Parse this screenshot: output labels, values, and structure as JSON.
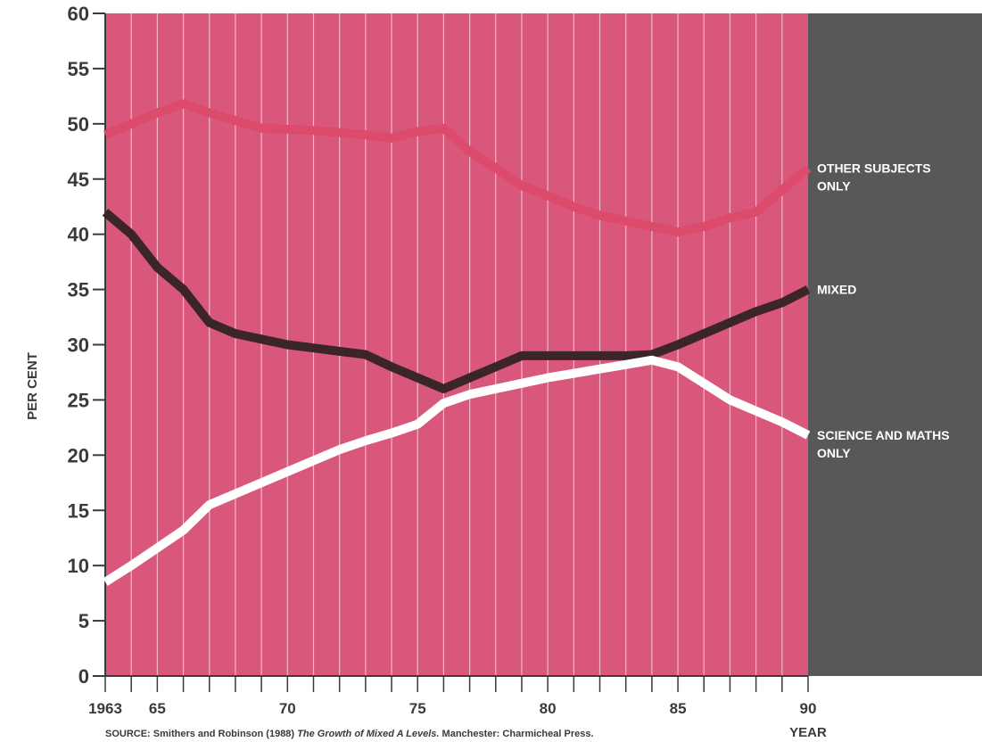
{
  "chart_data": {
    "type": "line",
    "ylabel": "PER CENT",
    "xlabel": "YEAR",
    "ylim": [
      0,
      60
    ],
    "xlim": [
      1963,
      1990
    ],
    "y_ticks": [
      0,
      5,
      10,
      15,
      20,
      25,
      30,
      35,
      40,
      45,
      50,
      55,
      60
    ],
    "y_tick_labels": [
      "0",
      "5",
      "10",
      "15",
      "20",
      "25",
      "30",
      "35",
      "40",
      "45",
      "50",
      "55",
      "60"
    ],
    "x_tick_labels": [
      {
        "x": 1963,
        "label": "1963"
      },
      {
        "x": 1965,
        "label": "65"
      },
      {
        "x": 1970,
        "label": "70"
      },
      {
        "x": 1975,
        "label": "75"
      },
      {
        "x": 1980,
        "label": "80"
      },
      {
        "x": 1985,
        "label": "85"
      },
      {
        "x": 1990,
        "label": "90"
      }
    ],
    "grid": "vertical lines at each year",
    "series": [
      {
        "name_lines": [
          "OTHER SUBJECTS",
          "ONLY"
        ],
        "color": "#dc4a6c",
        "x": [
          1963,
          1964,
          1965,
          1966,
          1967,
          1968,
          1969,
          1970,
          1971,
          1972,
          1973,
          1974,
          1975,
          1976,
          1977,
          1978,
          1979,
          1980,
          1981,
          1982,
          1983,
          1984,
          1985,
          1986,
          1987,
          1988,
          1989,
          1990
        ],
        "values": [
          49,
          50,
          51,
          51.8,
          51,
          50.3,
          49.6,
          49.5,
          49.4,
          49.2,
          49,
          48.7,
          49.3,
          49.6,
          47.5,
          46,
          44.4,
          43.5,
          42.5,
          41.7,
          41.2,
          40.7,
          40.2,
          40.7,
          41.5,
          42,
          44,
          46
        ]
      },
      {
        "name_lines": [
          "MIXED"
        ],
        "color": "#3b2529",
        "x": [
          1963,
          1964,
          1965,
          1966,
          1967,
          1968,
          1969,
          1970,
          1971,
          1972,
          1973,
          1974,
          1975,
          1976,
          1977,
          1978,
          1979,
          1980,
          1981,
          1982,
          1983,
          1984,
          1985,
          1986,
          1987,
          1988,
          1989,
          1990
        ],
        "values": [
          42,
          40,
          37,
          35,
          32,
          31,
          30.5,
          30,
          29.7,
          29.4,
          29.1,
          28,
          27,
          26,
          27,
          28,
          29,
          29,
          29,
          29,
          29,
          29.1,
          30,
          31,
          32,
          33,
          33.8,
          35
        ]
      },
      {
        "name_lines": [
          "SCIENCE AND MATHS",
          "ONLY"
        ],
        "color": "#ffffff",
        "x": [
          1963,
          1964,
          1965,
          1966,
          1967,
          1968,
          1969,
          1970,
          1971,
          1972,
          1973,
          1974,
          1975,
          1976,
          1977,
          1978,
          1979,
          1980,
          1981,
          1982,
          1983,
          1984,
          1985,
          1986,
          1987,
          1988,
          1989,
          1990
        ],
        "values": [
          8.5,
          10,
          11.6,
          13.2,
          15.5,
          16.5,
          17.5,
          18.5,
          19.5,
          20.5,
          21.3,
          22,
          22.8,
          24.7,
          25.5,
          26,
          26.5,
          27,
          27.4,
          27.8,
          28.2,
          28.6,
          28,
          26.5,
          25,
          24,
          23,
          21.8
        ]
      }
    ]
  },
  "source": {
    "prefix": "SOURCE: Smithers and Robinson (1988)",
    "title": "The Growth of Mixed A Levels.",
    "suffix": "Manchester: Charmicheal Press."
  }
}
